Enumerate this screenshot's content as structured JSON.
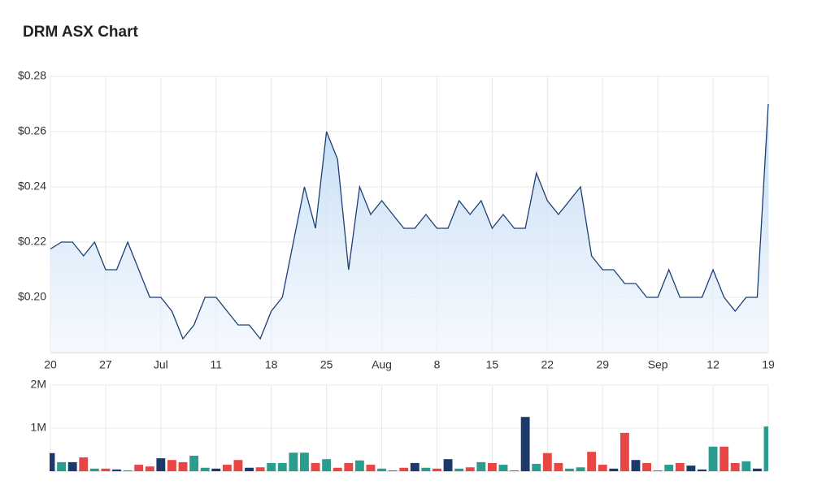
{
  "chart_data": [
    {
      "type": "area",
      "title": "DRM ASX Chart",
      "categories": [
        "20",
        null,
        null,
        null,
        null,
        "27",
        null,
        null,
        null,
        null,
        "Jul",
        null,
        null,
        null,
        null,
        "11",
        null,
        null,
        null,
        null,
        "18",
        null,
        null,
        null,
        null,
        "25",
        null,
        null,
        null,
        null,
        "Aug",
        null,
        null,
        null,
        null,
        "8",
        null,
        null,
        null,
        null,
        "15",
        null,
        null,
        null,
        null,
        "22",
        null,
        null,
        null,
        null,
        "29",
        null,
        null,
        null,
        null,
        "Sep",
        null,
        null,
        null,
        null,
        "12",
        null,
        null,
        null,
        null,
        "19"
      ],
      "values": [
        0.2175,
        0.22,
        0.22,
        0.215,
        0.22,
        0.21,
        0.21,
        0.22,
        0.21,
        0.2,
        0.2,
        0.195,
        0.185,
        0.19,
        0.2,
        0.2,
        0.195,
        0.19,
        0.19,
        0.185,
        0.195,
        0.2,
        0.22,
        0.24,
        0.225,
        0.26,
        0.25,
        0.21,
        0.24,
        0.23,
        0.235,
        0.23,
        0.225,
        0.225,
        0.23,
        0.225,
        0.225,
        0.235,
        0.23,
        0.235,
        0.225,
        0.23,
        0.225,
        0.225,
        0.245,
        0.235,
        0.23,
        0.235,
        0.24,
        0.215,
        0.21,
        0.21,
        0.205,
        0.205,
        0.2,
        0.2,
        0.21,
        0.2,
        0.2,
        0.2,
        0.21,
        0.2,
        0.195,
        0.2,
        0.2,
        0.27
      ],
      "color": "#1c3f73",
      "ylim": [
        0.18,
        0.28
      ],
      "yticks": [
        {
          "value": 0.2,
          "label": "$0.20"
        },
        {
          "value": 0.22,
          "label": "$0.22"
        },
        {
          "value": 0.24,
          "label": "$0.24"
        },
        {
          "value": 0.26,
          "label": "$0.26"
        },
        {
          "value": 0.28,
          "label": "$0.28"
        }
      ],
      "grid": true
    },
    {
      "type": "bar",
      "values": [
        420000,
        210000,
        210000,
        320000,
        60000,
        60000,
        40000,
        20000,
        150000,
        110000,
        300000,
        260000,
        210000,
        360000,
        80000,
        60000,
        150000,
        260000,
        80000,
        90000,
        190000,
        190000,
        430000,
        430000,
        190000,
        280000,
        80000,
        190000,
        250000,
        150000,
        60000,
        20000,
        80000,
        190000,
        80000,
        60000,
        280000,
        60000,
        90000,
        210000,
        190000,
        150000,
        20000,
        1260000,
        170000,
        420000,
        190000,
        60000,
        90000,
        450000,
        150000,
        60000,
        890000,
        260000,
        190000,
        20000,
        150000,
        190000,
        130000,
        40000,
        570000,
        570000,
        190000,
        230000,
        60000,
        1040000
      ],
      "colors": [
        "#1b3a6b",
        "#2a9d8f",
        "#1b3a6b",
        "#e84545",
        "#2a9d8f",
        "#e84545",
        "#1b3a6b",
        "#2a9d8f",
        "#e84545",
        "#e84545",
        "#1b3a6b",
        "#e84545",
        "#e84545",
        "#2a9d8f",
        "#2a9d8f",
        "#1b3a6b",
        "#e84545",
        "#e84545",
        "#1b3a6b",
        "#e84545",
        "#2a9d8f",
        "#2a9d8f",
        "#2a9d8f",
        "#2a9d8f",
        "#e84545",
        "#2a9d8f",
        "#e84545",
        "#e84545",
        "#2a9d8f",
        "#e84545",
        "#2a9d8f",
        "#e84545",
        "#e84545",
        "#1b3a6b",
        "#2a9d8f",
        "#e84545",
        "#1b3a6b",
        "#2a9d8f",
        "#e84545",
        "#2a9d8f",
        "#e84545",
        "#2a9d8f",
        "#e84545",
        "#1b3a6b",
        "#2a9d8f",
        "#e84545",
        "#e84545",
        "#2a9d8f",
        "#2a9d8f",
        "#e84545",
        "#e84545",
        "#1b3a6b",
        "#e84545",
        "#1b3a6b",
        "#e84545",
        "#2a9d8f",
        "#2a9d8f",
        "#e84545",
        "#1b3a6b",
        "#1b3a6b",
        "#2a9d8f",
        "#e84545",
        "#e84545",
        "#2a9d8f",
        "#1b3a6b",
        "#2a9d8f"
      ],
      "ylim": [
        0,
        2000000
      ],
      "yticks": [
        {
          "value": 1000000,
          "label": "1M"
        },
        {
          "value": 2000000,
          "label": "2M"
        }
      ],
      "grid": true
    }
  ]
}
